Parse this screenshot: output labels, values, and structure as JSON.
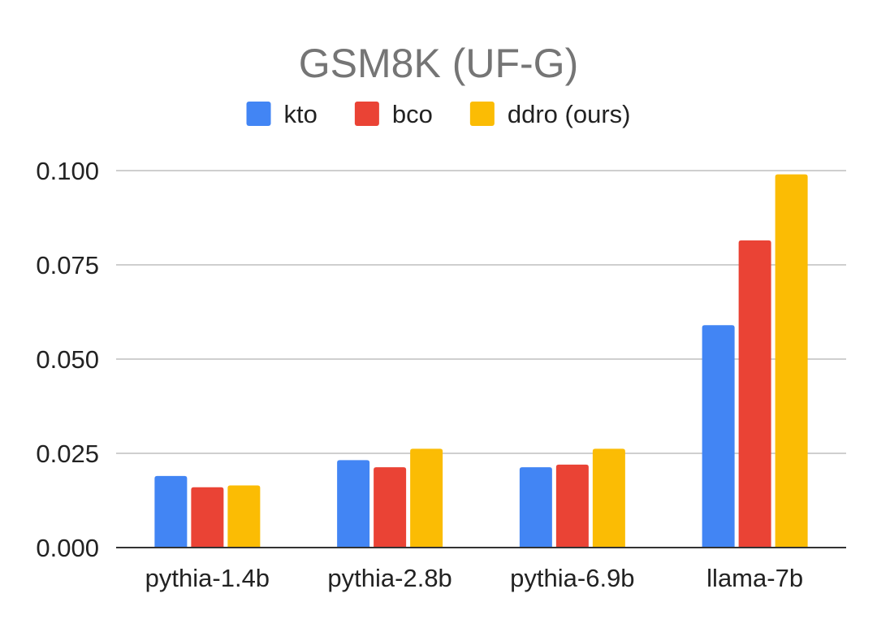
{
  "chart_data": {
    "type": "bar",
    "title": "GSM8K (UF-G)",
    "xlabel": "",
    "ylabel": "",
    "categories": [
      "pythia-1.4b",
      "pythia-2.8b",
      "pythia-6.9b",
      "llama-7b"
    ],
    "series": [
      {
        "name": "kto",
        "color": "#4285F4",
        "values": [
          0.019,
          0.0232,
          0.0213,
          0.059
        ]
      },
      {
        "name": "bco",
        "color": "#EA4335",
        "values": [
          0.016,
          0.0213,
          0.022,
          0.0815
        ]
      },
      {
        "name": "ddro (ours)",
        "color": "#FBBC04",
        "values": [
          0.0165,
          0.0262,
          0.0262,
          0.099
        ]
      }
    ],
    "ylim": [
      0,
      0.1
    ],
    "yticks": [
      "0.000",
      "0.025",
      "0.050",
      "0.075",
      "0.100"
    ],
    "ytick_values": [
      0,
      0.025,
      0.05,
      0.075,
      0.1
    ],
    "grid": true,
    "legend_position": "top"
  }
}
